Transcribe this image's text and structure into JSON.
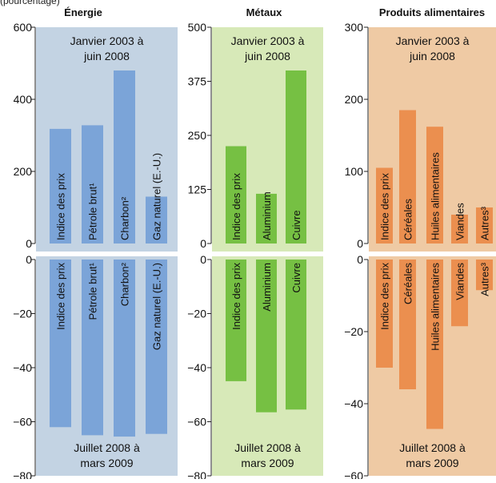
{
  "top_note": "(pourcentage)",
  "colors": {
    "energie_bg": "#c3d3e3",
    "energie_bar": "#7ba4d8",
    "metaux_bg": "#d7e9b8",
    "metaux_bar": "#76c043",
    "aliments_bg": "#efcaa4",
    "aliments_bar": "#eb8f4f",
    "axis": "#222222"
  },
  "chart_data": [
    {
      "type": "bar",
      "panel": "energie",
      "title": "Énergie",
      "categories": [
        "Indice des prix",
        "Pétrole brut¹",
        "Charbon²",
        "Gaz naturel (E.-U.)"
      ],
      "top": {
        "period": [
          "Janvier 2003 à",
          "juin 2008"
        ],
        "values": [
          318,
          328,
          480,
          130
        ],
        "ylim": [
          0,
          600
        ],
        "ticks": [
          0,
          200,
          400,
          600
        ]
      },
      "bottom": {
        "period": [
          "Juillet 2008 à",
          "mars 2009"
        ],
        "values": [
          -62,
          -65,
          -65.5,
          -64.5
        ],
        "ylim": [
          -80,
          0
        ],
        "ticks": [
          0,
          -20,
          -40,
          -60,
          -80
        ]
      }
    },
    {
      "type": "bar",
      "panel": "metaux",
      "title": "Métaux",
      "categories": [
        "Indice des prix",
        "Aluminium",
        "Cuivre"
      ],
      "top": {
        "period": [
          "Janvier 2003 à",
          "juin 2008"
        ],
        "values": [
          225,
          115,
          400
        ],
        "ylim": [
          0,
          500
        ],
        "ticks": [
          0,
          125,
          250,
          375,
          500
        ]
      },
      "bottom": {
        "period": [
          "Juillet 2008 à",
          "mars 2009"
        ],
        "values": [
          -45,
          -56.5,
          -55.5
        ],
        "ylim": [
          -80,
          0
        ],
        "ticks": [
          0,
          -20,
          -40,
          -60,
          -80
        ]
      }
    },
    {
      "type": "bar",
      "panel": "aliments",
      "title": "Produits alimentaires",
      "categories": [
        "Indice des prix",
        "Céréales",
        "Huiles alimentaires",
        "Viandes",
        "Autres³"
      ],
      "top": {
        "period": [
          "Janvier 2003 à",
          "juin 2008"
        ],
        "values": [
          105,
          185,
          162,
          40,
          50
        ],
        "ylim": [
          0,
          300
        ],
        "ticks": [
          0,
          100,
          200,
          300
        ]
      },
      "bottom": {
        "period": [
          "Juillet 2008 à",
          "mars 2009"
        ],
        "values": [
          -30,
          -36,
          -47,
          -18.5,
          -8.5
        ],
        "ylim": [
          -60,
          0
        ],
        "ticks": [
          0,
          -20,
          -40,
          -60
        ]
      }
    }
  ]
}
